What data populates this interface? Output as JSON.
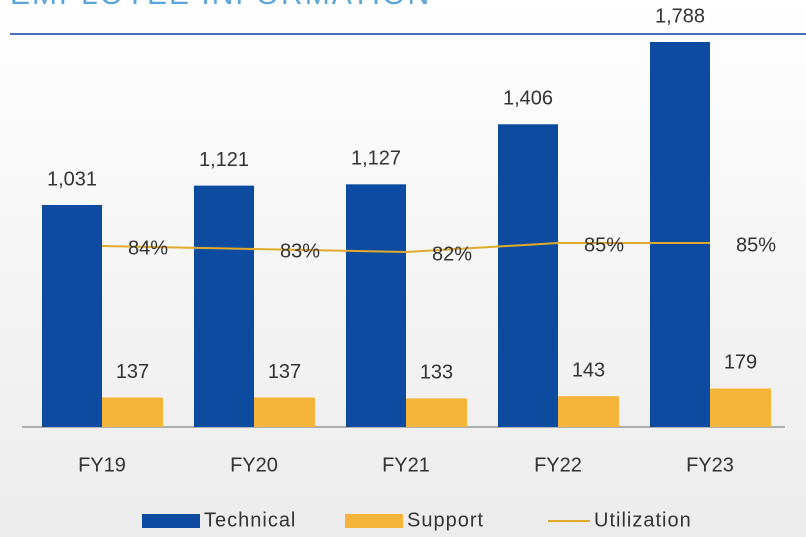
{
  "chart_data": {
    "type": "bar",
    "title": "EMPLOYEE INFORMATION",
    "categories": [
      "FY19",
      "FY20",
      "FY21",
      "FY22",
      "FY23"
    ],
    "series": [
      {
        "name": "Technical",
        "color": "#0d4ba0",
        "values": [
          1031,
          1121,
          1127,
          1406,
          1788
        ],
        "value_labels": [
          "1,031",
          "1,121",
          "1,127",
          "1,406",
          "1,788"
        ]
      },
      {
        "name": "Support",
        "color": "#f5b43a",
        "values": [
          137,
          137,
          133,
          143,
          179
        ]
      },
      {
        "name": "Utilization",
        "type": "line",
        "color": "#e0aa2a",
        "values": [
          84,
          83,
          82,
          85,
          85
        ],
        "value_labels": [
          "84%",
          "83%",
          "82%",
          "85%",
          "85%"
        ]
      }
    ],
    "legend": "bottom"
  }
}
